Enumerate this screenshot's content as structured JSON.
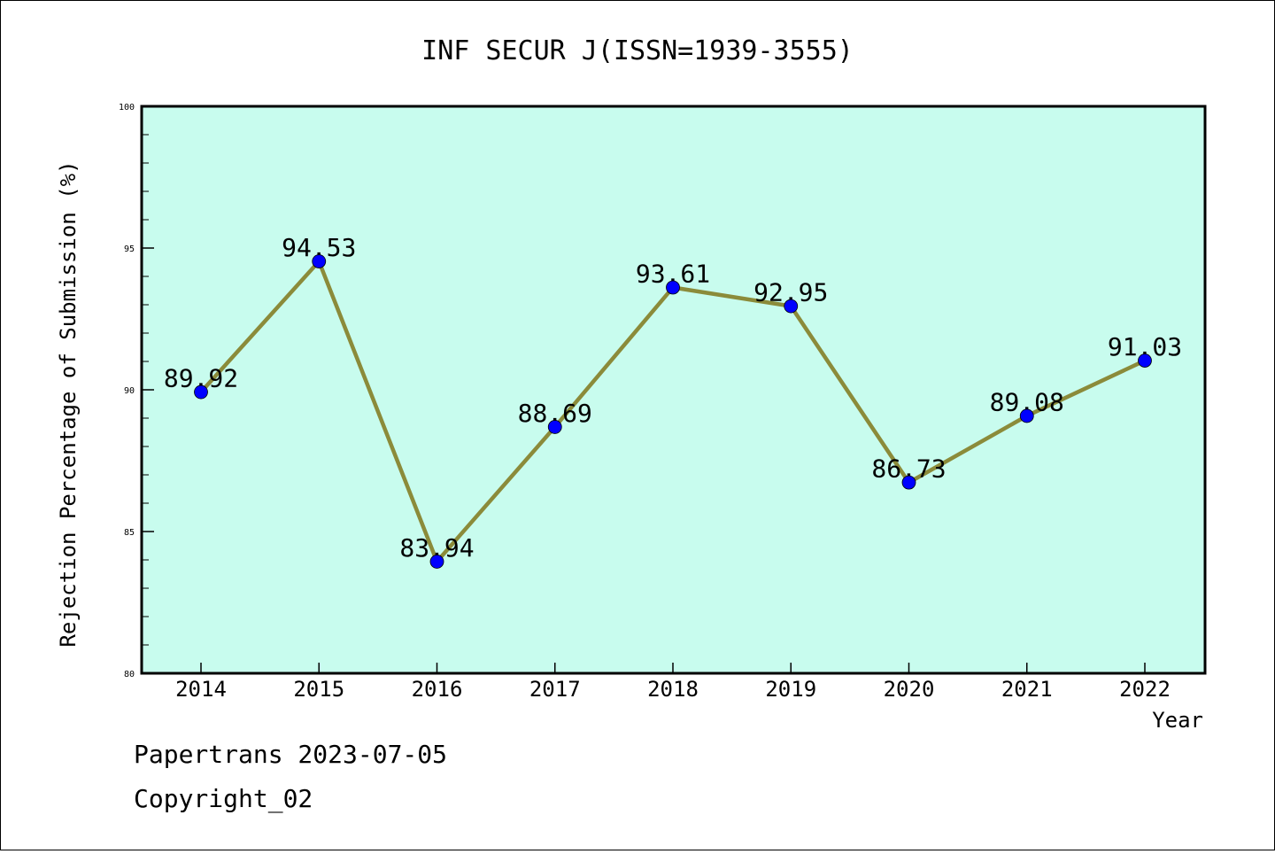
{
  "chart_data": {
    "type": "line",
    "title": "INF SECUR J(ISSN=1939-3555)",
    "xlabel": "Year",
    "ylabel": "Rejection Percentage of Submission (%)",
    "categories": [
      "2014",
      "2015",
      "2016",
      "2017",
      "2018",
      "2019",
      "2020",
      "2021",
      "2022"
    ],
    "values": [
      89.92,
      94.53,
      83.94,
      88.69,
      93.61,
      92.95,
      86.73,
      89.08,
      91.03
    ],
    "data_labels": [
      "89.92",
      "94.53",
      "83.94",
      "88.69",
      "93.61",
      "92.95",
      "86.73",
      "89.08",
      "91.03"
    ],
    "y_ticks": [
      "80",
      "85",
      "90",
      "95",
      "100"
    ],
    "ylim": [
      80,
      100
    ],
    "grid": false,
    "colors": {
      "plot_background": "#c8fcee",
      "line": "#8b8b3a",
      "marker": "#0000ff"
    }
  },
  "footer": {
    "line1": "Papertrans 2023-07-05",
    "line2": "Copyright_02"
  }
}
